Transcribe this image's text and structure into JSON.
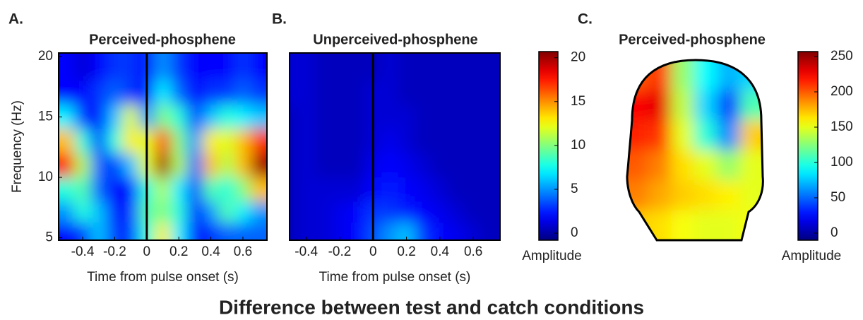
{
  "figure_title": "Difference between test and catch conditions",
  "chart_data": [
    {
      "type": "heatmap",
      "panel": "A.",
      "title": "Perceived-phosphene",
      "xlabel": "Time from pulse onset (s)",
      "ylabel": "Frequency (Hz)",
      "xlim": [
        -0.55,
        0.75
      ],
      "ylim": [
        4.8,
        20.3
      ],
      "xticks": [
        -0.4,
        -0.2,
        0,
        0.2,
        0.4,
        0.6
      ],
      "yticks": [
        5,
        10,
        15,
        20
      ],
      "x": [
        -0.5,
        -0.4,
        -0.3,
        -0.2,
        -0.1,
        0,
        0.1,
        0.2,
        0.3,
        0.4,
        0.5,
        0.6,
        0.7
      ],
      "y": [
        19,
        17,
        15,
        13,
        11,
        9,
        7,
        5.5
      ],
      "values": [
        [
          2,
          1,
          2,
          3,
          3,
          2,
          5,
          3,
          2,
          2,
          2,
          3,
          2
        ],
        [
          2,
          2,
          3,
          4,
          3,
          2,
          7,
          4,
          2,
          3,
          3,
          4,
          3
        ],
        [
          7,
          3,
          2,
          6,
          12,
          5,
          10,
          8,
          3,
          6,
          8,
          7,
          6
        ],
        [
          14,
          8,
          3,
          8,
          13,
          12,
          17,
          10,
          5,
          13,
          12,
          14,
          17
        ],
        [
          18,
          11,
          4,
          3,
          6,
          12,
          20,
          11,
          4,
          14,
          11,
          14,
          20
        ],
        [
          8,
          9,
          4,
          2,
          2,
          8,
          11,
          7,
          3,
          9,
          8,
          10,
          14
        ],
        [
          5,
          8,
          6,
          2,
          3,
          9,
          10,
          8,
          2,
          5,
          9,
          7,
          5
        ],
        [
          2,
          3,
          6,
          3,
          3,
          8,
          13,
          7,
          2,
          3,
          4,
          4,
          4
        ]
      ],
      "colorbar": {
        "label": "Amplitude",
        "lim": [
          -0.8,
          20.7
        ],
        "ticks": [
          0,
          5,
          10,
          15,
          20
        ]
      }
    },
    {
      "type": "heatmap",
      "panel": "B.",
      "title": "Unperceived-phosphene",
      "xlabel": "Time from pulse onset (s)",
      "xlim": [
        -0.5,
        0.76
      ],
      "ylim": [
        4.8,
        20.3
      ],
      "xticks": [
        -0.4,
        -0.2,
        0,
        0.2,
        0.4,
        0.6
      ],
      "x": [
        -0.5,
        -0.4,
        -0.3,
        -0.2,
        -0.1,
        0,
        0.1,
        0.2,
        0.3,
        0.4,
        0.5,
        0.6,
        0.7
      ],
      "y": [
        19,
        17,
        15,
        13,
        11,
        9,
        7,
        5.5
      ],
      "values": [
        [
          1,
          1,
          0.5,
          0.5,
          0.5,
          0.5,
          1,
          0.5,
          0.5,
          0.5,
          0.5,
          0.5,
          0.5
        ],
        [
          1,
          1,
          0.5,
          0.5,
          0.5,
          1,
          1,
          0.5,
          0.5,
          0.5,
          0.5,
          0.5,
          0.5
        ],
        [
          0.5,
          1,
          0.5,
          0.5,
          0.5,
          1,
          1,
          1,
          0.5,
          0.5,
          0.5,
          0.5,
          0.5
        ],
        [
          0.5,
          1,
          0.5,
          0.5,
          0.5,
          1,
          1.5,
          1,
          0.5,
          0.5,
          0.5,
          0.5,
          0.5
        ],
        [
          0.5,
          1,
          0.5,
          0.5,
          0.5,
          1.5,
          2,
          1.5,
          1,
          0.5,
          0.5,
          0.5,
          0.5
        ],
        [
          0.5,
          1,
          1,
          1,
          1,
          2,
          2.5,
          2,
          1.5,
          1,
          0.5,
          0.5,
          0.5
        ],
        [
          0.5,
          1,
          1,
          1.5,
          2,
          3,
          3,
          2.5,
          2,
          1.5,
          1,
          0.5,
          0.5
        ],
        [
          0.5,
          1,
          1,
          1.5,
          2,
          3.5,
          5,
          6,
          3,
          2,
          1.5,
          1,
          0.5
        ]
      ],
      "colorbar": {
        "label": "Amplitude",
        "lim": [
          -0.8,
          20.7
        ],
        "ticks": [
          0,
          5,
          10,
          15,
          20
        ]
      }
    },
    {
      "type": "topomap",
      "panel": "C.",
      "title": "Perceived-phosphene",
      "values": [
        [
          200,
          210,
          130,
          90,
          70,
          80
        ],
        [
          225,
          230,
          140,
          80,
          40,
          110
        ],
        [
          215,
          210,
          150,
          100,
          60,
          170
        ],
        [
          200,
          190,
          165,
          150,
          130,
          150
        ],
        [
          190,
          180,
          170,
          165,
          160,
          150
        ],
        [
          170,
          165,
          155,
          150,
          150,
          155
        ]
      ],
      "colorbar": {
        "label": "Amplitude",
        "lim": [
          -10,
          257
        ],
        "ticks": [
          0,
          50,
          100,
          150,
          200,
          250
        ]
      }
    }
  ]
}
